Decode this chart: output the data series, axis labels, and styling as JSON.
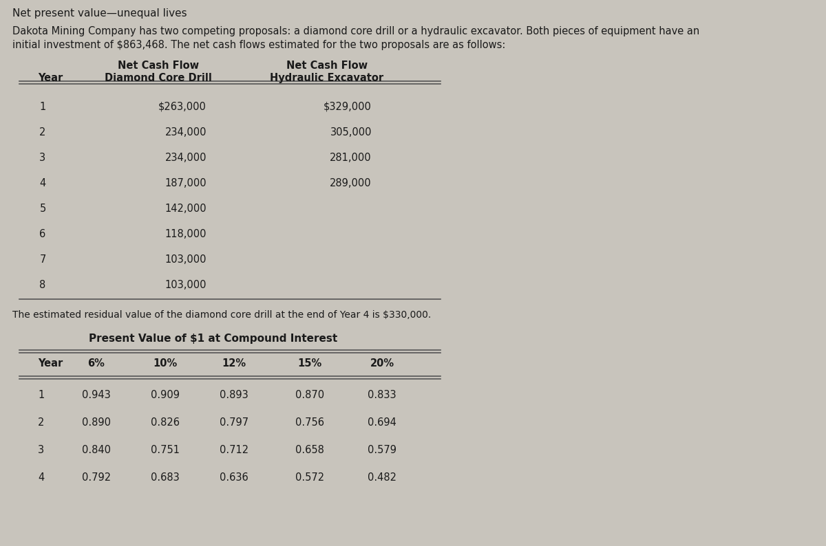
{
  "title": "Net present value—unequal lives",
  "description_line1": "Dakota Mining Company has two competing proposals: a diamond core drill or a hydraulic excavator. Both pieces of equipment have an",
  "description_line2": "initial investment of $863,468. The net cash flows estimated for the two proposals are as follows:",
  "table1_data": [
    [
      "1",
      "$263,000",
      "$329,000"
    ],
    [
      "2",
      "234,000",
      "305,000"
    ],
    [
      "3",
      "234,000",
      "281,000"
    ],
    [
      "4",
      "187,000",
      "289,000"
    ],
    [
      "5",
      "142,000",
      ""
    ],
    [
      "6",
      "118,000",
      ""
    ],
    [
      "7",
      "103,000",
      ""
    ],
    [
      "8",
      "103,000",
      ""
    ]
  ],
  "residual_note": "The estimated residual value of the diamond core drill at the end of Year 4 is $330,000.",
  "table2_title": "Present Value of $1 at Compound Interest",
  "table2_header": [
    "Year",
    "6%",
    "10%",
    "12%",
    "15%",
    "20%"
  ],
  "table2_data": [
    [
      "1",
      "0.943",
      "0.909",
      "0.893",
      "0.870",
      "0.833"
    ],
    [
      "2",
      "0.890",
      "0.826",
      "0.797",
      "0.756",
      "0.694"
    ],
    [
      "3",
      "0.840",
      "0.751",
      "0.712",
      "0.658",
      "0.579"
    ],
    [
      "4",
      "0.792",
      "0.683",
      "0.636",
      "0.572",
      "0.482"
    ]
  ],
  "bg_color": "#c8c4bc",
  "text_color": "#1a1a1a",
  "line_color": "#555555",
  "header_bg": "#b8b4ac"
}
